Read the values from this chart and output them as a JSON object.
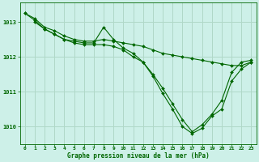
{
  "title": "Graphe pression niveau de la mer (hPa)",
  "background_color": "#cdf0e8",
  "grid_color": "#b0d8c8",
  "line_color": "#006600",
  "xlim": [
    -0.5,
    23.5
  ],
  "ylim": [
    1009.5,
    1013.55
  ],
  "yticks": [
    1010,
    1011,
    1012,
    1013
  ],
  "xticks": [
    0,
    1,
    2,
    3,
    4,
    5,
    6,
    7,
    8,
    9,
    10,
    11,
    12,
    13,
    14,
    15,
    16,
    17,
    18,
    19,
    20,
    21,
    22,
    23
  ],
  "series": [
    {
      "x": [
        0,
        1,
        2,
        3,
        4,
        5,
        6,
        7,
        8,
        9,
        10,
        11,
        12,
        13,
        14,
        15,
        16,
        17,
        18,
        19,
        20,
        21,
        22,
        23
      ],
      "y": [
        1013.25,
        1013.1,
        1012.85,
        1012.75,
        1012.6,
        1012.5,
        1012.45,
        1012.45,
        1012.5,
        1012.45,
        1012.4,
        1012.35,
        1012.3,
        1012.2,
        1012.1,
        1012.05,
        1012.0,
        1011.95,
        1011.9,
        1011.85,
        1011.8,
        1011.75,
        1011.75,
        1011.85
      ]
    },
    {
      "x": [
        0,
        1,
        2,
        3,
        4,
        5,
        6,
        7,
        8,
        9,
        10,
        11,
        12,
        13,
        14,
        15,
        16,
        17,
        18,
        19,
        20,
        21,
        22,
        23
      ],
      "y": [
        1013.25,
        1013.05,
        1012.8,
        1012.65,
        1012.5,
        1012.45,
        1012.4,
        1012.4,
        1012.85,
        1012.5,
        1012.25,
        1012.1,
        1011.85,
        1011.5,
        1011.1,
        1010.65,
        1010.2,
        1009.85,
        1010.05,
        1010.35,
        1010.75,
        1011.55,
        1011.85,
        1011.9
      ]
    },
    {
      "x": [
        1,
        2,
        3,
        4,
        5,
        6,
        7,
        8,
        9,
        10,
        11,
        12,
        13,
        14,
        15,
        16,
        17,
        18,
        19,
        20,
        21,
        22,
        23
      ],
      "y": [
        1013.0,
        1012.8,
        1012.65,
        1012.5,
        1012.4,
        1012.35,
        1012.35,
        1012.35,
        1012.3,
        1012.2,
        1012.0,
        1011.85,
        1011.45,
        1010.95,
        1010.5,
        1010.0,
        1009.8,
        1009.95,
        1010.3,
        1010.5,
        1011.3,
        1011.65,
        1011.85
      ]
    }
  ]
}
